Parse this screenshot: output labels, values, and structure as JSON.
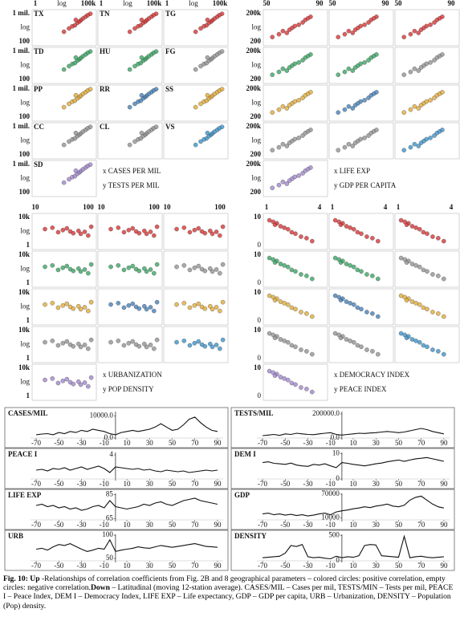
{
  "panels": [
    {
      "label": "TX",
      "color": "#d62728"
    },
    {
      "label": "TN",
      "color": "#d62728"
    },
    {
      "label": "TG",
      "color": "#d62728"
    },
    {
      "label": "TD",
      "color": "#2ca05a"
    },
    {
      "label": "HU",
      "color": "#2ca05a"
    },
    {
      "label": "FG",
      "color": "#8c8c8c"
    },
    {
      "label": "PP",
      "color": "#e0a52a"
    },
    {
      "label": "RR",
      "color": "#3a78b5"
    },
    {
      "label": "SS",
      "color": "#e0a52a"
    },
    {
      "label": "CC",
      "color": "#8c8c8c"
    },
    {
      "label": "CL",
      "color": "#8c8c8c"
    },
    {
      "label": "VS",
      "color": "#2f8cc8"
    },
    {
      "label": "SD",
      "color": "#9b7fc9"
    }
  ],
  "chart_data": [
    {
      "type": "scatter",
      "show_panel_labels": true,
      "xlabel": "x CASES PER MIL",
      "ylabel": "y TESTS PER MIL",
      "x_labels": [
        "1",
        "log",
        "100k"
      ],
      "y_labels": [
        "1 mil.",
        "log",
        "100"
      ],
      "log_x": true,
      "log_y": true,
      "xlim": [
        1,
        100000
      ],
      "ylim": [
        100,
        1000000
      ],
      "x": [
        300,
        800,
        1500,
        2500,
        4000,
        6000,
        8000,
        12000,
        20000,
        30000,
        50000,
        3000
      ],
      "y": [
        3000,
        8000,
        15000,
        20000,
        40000,
        60000,
        90000,
        150000,
        250000,
        400000,
        600000,
        100000
      ]
    },
    {
      "type": "scatter",
      "show_panel_labels": false,
      "xlabel": "x LIFE EXP",
      "ylabel": "y GDP PER CAPITA",
      "x_labels": [
        "50",
        "90"
      ],
      "y_labels": [
        "200k",
        "log",
        "200"
      ],
      "log_x": false,
      "log_y": true,
      "xlim": [
        50,
        95
      ],
      "ylim": [
        200,
        200000
      ],
      "x": [
        55,
        60,
        63,
        66,
        70,
        72,
        75,
        78,
        80,
        82,
        84,
        68
      ],
      "y": [
        800,
        1500,
        3000,
        2000,
        6000,
        9000,
        12000,
        20000,
        35000,
        50000,
        70000,
        4000
      ]
    },
    {
      "type": "scatter",
      "show_panel_labels": false,
      "xlabel": "x URBANIZATION",
      "ylabel": "y POP DENSITY",
      "x_labels": [
        "10",
        "100"
      ],
      "y_labels": [
        "10k",
        "log",
        "1"
      ],
      "log_x": true,
      "log_y": true,
      "xlim": [
        10,
        100
      ],
      "ylim": [
        1,
        10000
      ],
      "x": [
        15,
        20,
        25,
        30,
        40,
        45,
        55,
        60,
        70,
        80,
        90,
        35
      ],
      "y": [
        200,
        300,
        80,
        150,
        100,
        60,
        120,
        50,
        90,
        30,
        400,
        250
      ]
    },
    {
      "type": "scatter",
      "show_panel_labels": false,
      "xlabel": "x DEMOCRACY INDEX",
      "ylabel": "y PEACE INDEX",
      "x_labels": [
        "1",
        "4"
      ],
      "y_labels": [
        "10",
        "0"
      ],
      "log_x": false,
      "log_y": false,
      "xlim": [
        1,
        4.2
      ],
      "ylim": [
        0,
        10.5
      ],
      "x": [
        1.2,
        1.4,
        1.6,
        1.8,
        2.0,
        2.2,
        2.4,
        2.6,
        2.9,
        3.2,
        3.5,
        1.5
      ],
      "y": [
        9,
        8.5,
        8,
        7,
        6.5,
        6,
        5,
        4.5,
        3.5,
        3,
        2,
        7.5
      ]
    },
    {
      "type": "line",
      "title": "CASES/MIL",
      "xlim": [
        -75,
        95
      ],
      "xticks": [
        -70,
        -50,
        -30,
        -10,
        10,
        30,
        50,
        70,
        90
      ],
      "ylim": [
        0,
        12000
      ],
      "yticks": [
        {
          "value": 0,
          "label": "0.0"
        },
        {
          "value": 10000,
          "label": "10000.0"
        }
      ],
      "x": [
        -70,
        -65,
        -60,
        -55,
        -50,
        -45,
        -40,
        -35,
        -30,
        -25,
        -20,
        -15,
        -10,
        -5,
        0,
        5,
        10,
        15,
        20,
        25,
        30,
        35,
        40,
        45,
        50,
        55,
        60,
        65,
        70,
        75,
        80,
        85,
        90
      ],
      "values": [
        1500,
        1800,
        2000,
        1500,
        2500,
        2000,
        3000,
        2500,
        3500,
        3000,
        4000,
        3500,
        3000,
        2000,
        1500,
        2500,
        3000,
        3500,
        3000,
        3500,
        4000,
        5000,
        6500,
        5000,
        3500,
        4000,
        6000,
        8500,
        9500,
        7000,
        5000,
        3500,
        3000
      ]
    },
    {
      "type": "line",
      "title": "TESTS/MIL",
      "xlim": [
        -75,
        95
      ],
      "xticks": [
        -70,
        -50,
        -30,
        -10,
        10,
        30,
        50,
        70,
        90
      ],
      "ylim": [
        0,
        220000
      ],
      "yticks": [
        {
          "value": 0,
          "label": "0.0"
        },
        {
          "value": 200000,
          "label": "200000.0"
        }
      ],
      "x": [
        -70,
        -65,
        -60,
        -55,
        -50,
        -45,
        -40,
        -35,
        -30,
        -25,
        -20,
        -15,
        -10,
        -5,
        0,
        5,
        10,
        15,
        20,
        25,
        30,
        35,
        40,
        45,
        50,
        55,
        60,
        65,
        70,
        75,
        80,
        85,
        90
      ],
      "values": [
        20000,
        25000,
        30000,
        22000,
        35000,
        30000,
        40000,
        35000,
        30000,
        28000,
        35000,
        40000,
        45000,
        30000,
        25000,
        30000,
        35000,
        40000,
        38000,
        42000,
        45000,
        50000,
        55000,
        50000,
        45000,
        50000,
        60000,
        70000,
        80000,
        70000,
        55000,
        45000,
        35000
      ]
    },
    {
      "type": "line",
      "title": "PEACE I",
      "xlim": [
        -75,
        95
      ],
      "xticks": [
        -70,
        -50,
        -30,
        -10,
        10,
        30,
        50,
        70,
        90
      ],
      "ylim": [
        1,
        4.3
      ],
      "yticks": [
        4
      ],
      "x": [
        -70,
        -65,
        -60,
        -55,
        -50,
        -45,
        -40,
        -35,
        -30,
        -25,
        -20,
        -15,
        -10,
        -5,
        0,
        5,
        10,
        15,
        20,
        25,
        30,
        35,
        40,
        45,
        50,
        55,
        60,
        65,
        70,
        75,
        80,
        85,
        90
      ],
      "values": [
        2.1,
        2.2,
        2.0,
        2.3,
        2.2,
        2.4,
        2.1,
        2.3,
        2.5,
        2.2,
        2.4,
        2.6,
        2.3,
        1.8,
        2.5,
        2.4,
        2.3,
        2.2,
        2.3,
        2.1,
        2.2,
        2.0,
        1.9,
        2.1,
        2.0,
        1.9,
        2.0,
        1.8,
        1.9,
        2.0,
        2.1,
        2.0,
        2.1
      ]
    },
    {
      "type": "line",
      "title": "DEM I",
      "xlim": [
        -75,
        95
      ],
      "xticks": [
        -70,
        -50,
        -30,
        -10,
        10,
        30,
        50,
        70,
        90
      ],
      "ylim": [
        0,
        10.5
      ],
      "yticks": [
        0,
        10
      ],
      "x": [
        -70,
        -65,
        -60,
        -55,
        -50,
        -45,
        -40,
        -35,
        -30,
        -25,
        -20,
        -15,
        -10,
        -5,
        0,
        5,
        10,
        15,
        20,
        25,
        30,
        35,
        40,
        45,
        50,
        55,
        60,
        65,
        70,
        75,
        80,
        85,
        90
      ],
      "values": [
        6.5,
        6.8,
        6.2,
        6.0,
        5.8,
        6.3,
        5.5,
        5.2,
        5.0,
        5.8,
        5.5,
        6.0,
        5.2,
        4.5,
        6.5,
        6.2,
        5.8,
        5.5,
        5.2,
        5.6,
        6.0,
        6.3,
        6.8,
        7.2,
        7.5,
        7.0,
        7.5,
        8.0,
        8.2,
        8.5,
        8.0,
        7.5,
        7.0
      ]
    },
    {
      "type": "line",
      "title": "LIFE EXP",
      "xlim": [
        -75,
        95
      ],
      "xticks": [
        -70,
        -50,
        -30,
        -10,
        10,
        30,
        50,
        70,
        90
      ],
      "ylim": [
        64,
        86
      ],
      "yticks": [
        65,
        85
      ],
      "x": [
        -70,
        -65,
        -60,
        -55,
        -50,
        -45,
        -40,
        -35,
        -30,
        -25,
        -20,
        -15,
        -10,
        -5,
        0,
        5,
        10,
        15,
        20,
        25,
        30,
        35,
        40,
        45,
        50,
        55,
        60,
        65,
        70,
        75,
        80,
        85,
        90
      ],
      "values": [
        76,
        77,
        75,
        76,
        74,
        75,
        73,
        74,
        72,
        73,
        75,
        76,
        74,
        80,
        75,
        74,
        73,
        74,
        75,
        77,
        76,
        78,
        79,
        77,
        76,
        78,
        80,
        81,
        82,
        80,
        79,
        78,
        77
      ]
    },
    {
      "type": "line",
      "title": "GDP",
      "xlim": [
        -75,
        95
      ],
      "xticks": [
        -70,
        -50,
        -30,
        -10,
        10,
        30,
        50,
        70,
        90
      ],
      "ylim": [
        5000,
        72000
      ],
      "yticks": [
        10000,
        70000
      ],
      "x": [
        -70,
        -65,
        -60,
        -55,
        -50,
        -45,
        -40,
        -35,
        -30,
        -25,
        -20,
        -15,
        -10,
        -5,
        0,
        5,
        10,
        15,
        20,
        25,
        30,
        35,
        40,
        45,
        50,
        55,
        60,
        65,
        70,
        75,
        80,
        85,
        90
      ],
      "values": [
        20000,
        22000,
        18000,
        20000,
        17000,
        19000,
        16000,
        18000,
        15000,
        17000,
        20000,
        22000,
        18000,
        25000,
        28000,
        30000,
        33000,
        35000,
        38000,
        36000,
        40000,
        42000,
        45000,
        40000,
        38000,
        42000,
        55000,
        62000,
        65000,
        55000,
        45000,
        38000,
        35000
      ]
    },
    {
      "type": "line",
      "title": "URB",
      "xlim": [
        -75,
        95
      ],
      "xticks": [
        -70,
        -50,
        -30,
        -10,
        10,
        30,
        50,
        70,
        90
      ],
      "ylim": [
        45,
        102
      ],
      "yticks": [
        50,
        100
      ],
      "x": [
        -70,
        -65,
        -60,
        -55,
        -50,
        -45,
        -40,
        -35,
        -30,
        -25,
        -20,
        -15,
        -10,
        -5,
        0,
        5,
        10,
        15,
        20,
        25,
        30,
        35,
        40,
        45,
        50,
        55,
        60,
        65,
        70,
        75,
        80,
        85,
        90
      ],
      "values": [
        70,
        72,
        68,
        75,
        80,
        78,
        82,
        76,
        70,
        65,
        68,
        72,
        70,
        90,
        65,
        68,
        70,
        72,
        75,
        73,
        72,
        75,
        78,
        76,
        74,
        76,
        78,
        80,
        82,
        79,
        76,
        75,
        74
      ]
    },
    {
      "type": "line",
      "title": "DENSITY",
      "xlim": [
        -75,
        95
      ],
      "xticks": [
        -70,
        -50,
        -30,
        -10,
        10,
        30,
        50,
        70,
        90
      ],
      "ylim": [
        0,
        520
      ],
      "yticks": [
        0,
        500
      ],
      "x": [
        -70,
        -65,
        -60,
        -55,
        -50,
        -45,
        -40,
        -35,
        -30,
        -25,
        -20,
        -15,
        -10,
        -5,
        0,
        5,
        10,
        15,
        20,
        25,
        30,
        35,
        40,
        45,
        50,
        55,
        60,
        65,
        70,
        75,
        80,
        85,
        90
      ],
      "values": [
        60,
        70,
        80,
        90,
        150,
        300,
        280,
        320,
        80,
        60,
        70,
        50,
        40,
        90,
        60,
        80,
        70,
        100,
        300,
        320,
        310,
        100,
        90,
        80,
        70,
        480,
        60,
        80,
        90,
        70,
        60,
        70,
        80
      ]
    }
  ],
  "caption": [
    {
      "text": "Fig. 10: Up",
      "bold": true
    },
    {
      "text": " -Relationships of correlation coefficients from Fig. 2B and 8 geographical parameters – colored circles: positive correlation, empty circles: negative correlation.",
      "bold": false
    },
    {
      "text": "Down",
      "bold": true
    },
    {
      "text": " – Latitudinal (moving 12-station average). CASES/MIL – Cases per mil, TESTS/MIN – Tests per mil, PEACE I – Peace Index, DEM I – Democracy Index, LIFE EXP – Life expectancy, GDP – GDP per capita, URB – Urbanization, DENSITY – Population (Pop) density.",
      "bold": false
    }
  ]
}
